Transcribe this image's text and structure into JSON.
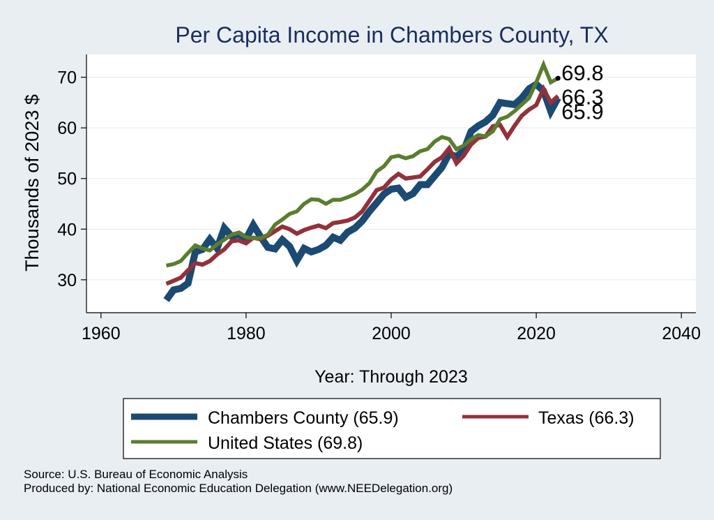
{
  "chart_data": {
    "type": "line",
    "title": "Per Capita Income in Chambers County, TX",
    "xlabel": "Year: Through 2023",
    "ylabel": "Thousands of 2023 $",
    "xlim": [
      1958,
      2042
    ],
    "ylim": [
      23.5,
      74.5
    ],
    "x_ticks": [
      1960,
      1980,
      2000,
      2020,
      2040
    ],
    "y_ticks": [
      30,
      40,
      50,
      60,
      70
    ],
    "grid": true,
    "legend_position": "bottom",
    "end_labels": [
      "69.8",
      "66.3",
      "65.9"
    ],
    "series": [
      {
        "name": "Chambers County (65.9)",
        "color": "#1b4a72",
        "x": [
          1969,
          1970,
          1971,
          1972,
          1973,
          1974,
          1975,
          1976,
          1977,
          1978,
          1979,
          1980,
          1981,
          1982,
          1983,
          1984,
          1985,
          1986,
          1987,
          1988,
          1989,
          1990,
          1991,
          1992,
          1993,
          1994,
          1995,
          1996,
          1997,
          1998,
          1999,
          2000,
          2001,
          2002,
          2003,
          2004,
          2005,
          2006,
          2007,
          2008,
          2009,
          2010,
          2011,
          2012,
          2013,
          2014,
          2015,
          2016,
          2017,
          2018,
          2019,
          2020,
          2021,
          2022,
          2023
        ],
        "values": [
          26.0,
          28.0,
          28.3,
          29.3,
          35.5,
          36.0,
          38.0,
          36.2,
          40.2,
          38.6,
          39.0,
          38.1,
          40.8,
          38.5,
          36.4,
          36.1,
          37.9,
          36.6,
          33.8,
          36.2,
          35.5,
          36.0,
          36.8,
          38.4,
          37.8,
          39.4,
          40.2,
          41.6,
          43.5,
          45.2,
          46.9,
          47.9,
          48.1,
          46.3,
          47.0,
          48.8,
          48.8,
          50.5,
          52.2,
          54.9,
          54.3,
          55.5,
          59.3,
          60.4,
          61.2,
          62.5,
          65.0,
          64.8,
          64.6,
          65.9,
          67.7,
          68.6,
          67.3,
          63.3,
          65.9
        ]
      },
      {
        "name": "Texas (66.3)",
        "color": "#93313a",
        "x": [
          1969,
          1970,
          1971,
          1972,
          1973,
          1974,
          1975,
          1976,
          1977,
          1978,
          1979,
          1980,
          1981,
          1982,
          1983,
          1984,
          1985,
          1986,
          1987,
          1988,
          1989,
          1990,
          1991,
          1992,
          1993,
          1994,
          1995,
          1996,
          1997,
          1998,
          1999,
          2000,
          2001,
          2002,
          2003,
          2004,
          2005,
          2006,
          2007,
          2008,
          2009,
          2010,
          2011,
          2012,
          2013,
          2014,
          2015,
          2016,
          2017,
          2018,
          2019,
          2020,
          2021,
          2022,
          2023
        ],
        "values": [
          29.2,
          29.8,
          30.4,
          31.9,
          33.3,
          33.0,
          33.7,
          35.0,
          36.0,
          37.6,
          37.8,
          37.2,
          38.3,
          38.0,
          38.7,
          39.6,
          40.5,
          40.0,
          39.1,
          39.8,
          40.3,
          40.7,
          40.2,
          41.2,
          41.4,
          41.7,
          42.3,
          43.5,
          45.6,
          47.7,
          48.2,
          49.8,
          50.9,
          50.0,
          50.2,
          50.4,
          51.8,
          53.3,
          54.2,
          56.0,
          53.0,
          54.5,
          56.7,
          58.0,
          58.3,
          60.3,
          60.6,
          58.2,
          60.4,
          62.4,
          63.6,
          64.5,
          67.7,
          65.0,
          66.3
        ]
      },
      {
        "name": "United States (69.8)",
        "color": "#5b7d2f",
        "x": [
          1969,
          1970,
          1971,
          1972,
          1973,
          1974,
          1975,
          1976,
          1977,
          1978,
          1979,
          1980,
          1981,
          1982,
          1983,
          1984,
          1985,
          1986,
          1987,
          1988,
          1989,
          1990,
          1991,
          1992,
          1993,
          1994,
          1995,
          1996,
          1997,
          1998,
          1999,
          2000,
          2001,
          2002,
          2003,
          2004,
          2005,
          2006,
          2007,
          2008,
          2009,
          2010,
          2011,
          2012,
          2013,
          2014,
          2015,
          2016,
          2017,
          2018,
          2019,
          2020,
          2021,
          2022,
          2023
        ],
        "values": [
          32.8,
          33.1,
          33.7,
          35.3,
          36.8,
          36.2,
          35.8,
          37.0,
          37.9,
          38.9,
          39.3,
          38.4,
          38.2,
          38.2,
          38.9,
          40.9,
          41.9,
          43.0,
          43.5,
          45.0,
          45.9,
          45.8,
          45.0,
          45.8,
          45.8,
          46.3,
          46.9,
          47.8,
          49.1,
          51.4,
          52.4,
          54.2,
          54.5,
          54.0,
          54.4,
          55.4,
          55.8,
          57.3,
          58.2,
          57.8,
          55.8,
          56.5,
          57.7,
          58.6,
          58.3,
          59.3,
          61.7,
          62.2,
          63.3,
          64.6,
          65.9,
          69.0,
          72.5,
          69.0,
          69.8
        ]
      }
    ]
  },
  "source_lines": [
    "Source: U.S. Bureau of Economic Analysis",
    "Produced by: National Economic Education Delegation (www.NEEDelegation.org)"
  ]
}
